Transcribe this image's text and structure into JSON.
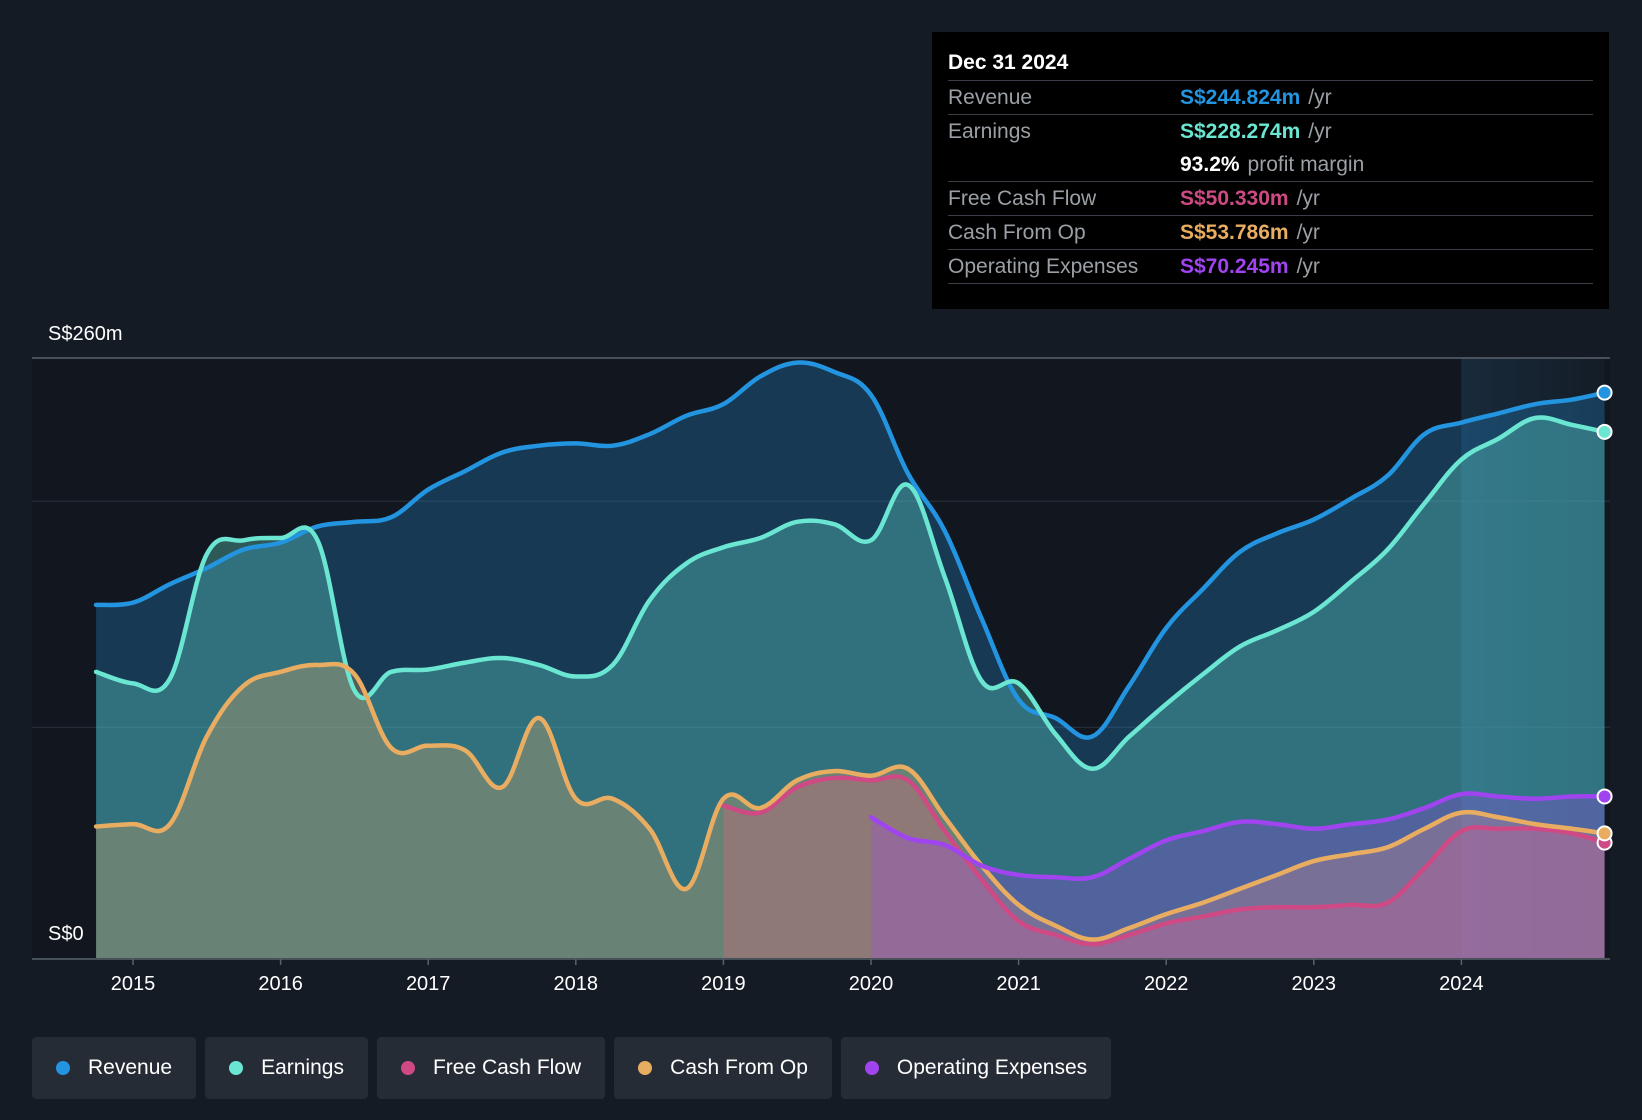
{
  "tooltip": {
    "date": "Dec 31 2024",
    "rows": [
      {
        "label": "Revenue",
        "value": "S$244.824m",
        "unit": "/yr",
        "color": "#2394df"
      },
      {
        "label": "Earnings",
        "value": "S$228.274m",
        "unit": "/yr",
        "color": "#6ae6d2"
      },
      {
        "margin_pct": "93.2%",
        "margin_text": "profit margin"
      },
      {
        "label": "Free Cash Flow",
        "value": "S$50.330m",
        "unit": "/yr",
        "color": "#cf4a85"
      },
      {
        "label": "Cash From Op",
        "value": "S$53.786m",
        "unit": "/yr",
        "color": "#e9ad62"
      },
      {
        "label": "Operating Expenses",
        "value": "S$70.245m",
        "unit": "/yr",
        "color": "#a044f0"
      }
    ]
  },
  "legend": [
    {
      "label": "Revenue",
      "color": "#2394df"
    },
    {
      "label": "Earnings",
      "color": "#6ae6d2"
    },
    {
      "label": "Free Cash Flow",
      "color": "#cf4a85"
    },
    {
      "label": "Cash From Op",
      "color": "#e9ad62"
    },
    {
      "label": "Operating Expenses",
      "color": "#a044f0"
    }
  ],
  "chart_data": {
    "type": "area",
    "title": "",
    "ylabel_top": "S$260m",
    "ylabel_bottom": "S$0",
    "ylim": [
      0,
      260
    ],
    "xlim": [
      2014.55,
      2024.97
    ],
    "highlight_start": 2024.0,
    "x_ticks": [
      2015,
      2016,
      2017,
      2018,
      2019,
      2020,
      2021,
      2022,
      2023,
      2024
    ],
    "series": [
      {
        "name": "Revenue",
        "color": "#2394df",
        "points": [
          [
            2014.75,
            153
          ],
          [
            2015.0,
            154
          ],
          [
            2015.25,
            162
          ],
          [
            2015.5,
            169
          ],
          [
            2015.75,
            177
          ],
          [
            2016.0,
            180
          ],
          [
            2016.25,
            187
          ],
          [
            2016.5,
            189
          ],
          [
            2016.75,
            191
          ],
          [
            2017.0,
            203
          ],
          [
            2017.25,
            211
          ],
          [
            2017.5,
            219
          ],
          [
            2017.75,
            222
          ],
          [
            2018.0,
            223
          ],
          [
            2018.25,
            222
          ],
          [
            2018.5,
            227
          ],
          [
            2018.75,
            235
          ],
          [
            2019.0,
            240
          ],
          [
            2019.25,
            252
          ],
          [
            2019.5,
            258
          ],
          [
            2019.75,
            254
          ],
          [
            2020.0,
            244
          ],
          [
            2020.25,
            210
          ],
          [
            2020.5,
            185
          ],
          [
            2020.75,
            147
          ],
          [
            2021.0,
            112
          ],
          [
            2021.25,
            104
          ],
          [
            2021.5,
            96
          ],
          [
            2021.75,
            118
          ],
          [
            2022.0,
            143
          ],
          [
            2022.25,
            160
          ],
          [
            2022.5,
            176
          ],
          [
            2022.75,
            184
          ],
          [
            2023.0,
            190
          ],
          [
            2023.25,
            199
          ],
          [
            2023.5,
            209
          ],
          [
            2023.75,
            227
          ],
          [
            2024.0,
            232
          ],
          [
            2024.25,
            236
          ],
          [
            2024.5,
            240
          ],
          [
            2024.75,
            242
          ],
          [
            2024.97,
            245
          ]
        ]
      },
      {
        "name": "Earnings",
        "color": "#6ae6d2",
        "points": [
          [
            2014.75,
            124
          ],
          [
            2015.0,
            119
          ],
          [
            2015.25,
            121
          ],
          [
            2015.5,
            175
          ],
          [
            2015.75,
            181
          ],
          [
            2016.0,
            182
          ],
          [
            2016.25,
            181
          ],
          [
            2016.5,
            116
          ],
          [
            2016.75,
            124
          ],
          [
            2017.0,
            125
          ],
          [
            2017.25,
            128
          ],
          [
            2017.5,
            130
          ],
          [
            2017.75,
            127
          ],
          [
            2018.0,
            122
          ],
          [
            2018.25,
            127
          ],
          [
            2018.5,
            155
          ],
          [
            2018.75,
            171
          ],
          [
            2019.0,
            178
          ],
          [
            2019.25,
            182
          ],
          [
            2019.5,
            189
          ],
          [
            2019.75,
            188
          ],
          [
            2020.0,
            181
          ],
          [
            2020.25,
            205
          ],
          [
            2020.5,
            165
          ],
          [
            2020.75,
            120
          ],
          [
            2021.0,
            119
          ],
          [
            2021.25,
            97
          ],
          [
            2021.5,
            82
          ],
          [
            2021.75,
            96
          ],
          [
            2022.0,
            110
          ],
          [
            2022.25,
            123
          ],
          [
            2022.5,
            135
          ],
          [
            2022.75,
            142
          ],
          [
            2023.0,
            150
          ],
          [
            2023.25,
            163
          ],
          [
            2023.5,
            177
          ],
          [
            2023.75,
            197
          ],
          [
            2024.0,
            216
          ],
          [
            2024.25,
            225
          ],
          [
            2024.5,
            234
          ],
          [
            2024.75,
            231
          ],
          [
            2024.97,
            228
          ]
        ]
      },
      {
        "name": "Free Cash Flow",
        "color": "#cf4a85",
        "points": [
          [
            2019.0,
            66
          ],
          [
            2019.25,
            63
          ],
          [
            2019.5,
            74
          ],
          [
            2019.75,
            78
          ],
          [
            2020.0,
            77
          ],
          [
            2020.25,
            77
          ],
          [
            2020.5,
            55
          ],
          [
            2020.75,
            34
          ],
          [
            2021.0,
            16
          ],
          [
            2021.25,
            10
          ],
          [
            2021.5,
            6
          ],
          [
            2021.75,
            10
          ],
          [
            2022.0,
            15
          ],
          [
            2022.25,
            18
          ],
          [
            2022.5,
            21
          ],
          [
            2022.75,
            22
          ],
          [
            2023.0,
            22
          ],
          [
            2023.25,
            23
          ],
          [
            2023.5,
            24
          ],
          [
            2023.75,
            39
          ],
          [
            2024.0,
            55
          ],
          [
            2024.25,
            56
          ],
          [
            2024.5,
            56
          ],
          [
            2024.75,
            54
          ],
          [
            2024.97,
            50
          ]
        ]
      },
      {
        "name": "Cash From Op",
        "color": "#e9ad62",
        "points": [
          [
            2014.75,
            57
          ],
          [
            2015.0,
            58
          ],
          [
            2015.25,
            58
          ],
          [
            2015.5,
            96
          ],
          [
            2015.75,
            118
          ],
          [
            2016.0,
            124
          ],
          [
            2016.25,
            127
          ],
          [
            2016.5,
            123
          ],
          [
            2016.75,
            91
          ],
          [
            2017.0,
            92
          ],
          [
            2017.25,
            90
          ],
          [
            2017.5,
            74
          ],
          [
            2017.75,
            104
          ],
          [
            2018.0,
            69
          ],
          [
            2018.25,
            69
          ],
          [
            2018.5,
            56
          ],
          [
            2018.75,
            30
          ],
          [
            2019.0,
            69
          ],
          [
            2019.25,
            65
          ],
          [
            2019.5,
            77
          ],
          [
            2019.75,
            81
          ],
          [
            2020.0,
            79
          ],
          [
            2020.25,
            82
          ],
          [
            2020.5,
            61
          ],
          [
            2020.75,
            40
          ],
          [
            2021.0,
            23
          ],
          [
            2021.25,
            14
          ],
          [
            2021.5,
            8
          ],
          [
            2021.75,
            13
          ],
          [
            2022.0,
            19
          ],
          [
            2022.25,
            24
          ],
          [
            2022.5,
            30
          ],
          [
            2022.75,
            36
          ],
          [
            2023.0,
            42
          ],
          [
            2023.25,
            45
          ],
          [
            2023.5,
            48
          ],
          [
            2023.75,
            56
          ],
          [
            2024.0,
            63
          ],
          [
            2024.25,
            61
          ],
          [
            2024.5,
            58
          ],
          [
            2024.75,
            56
          ],
          [
            2024.97,
            54
          ]
        ]
      },
      {
        "name": "Operating Expenses",
        "color": "#a044f0",
        "points": [
          [
            2020.0,
            61
          ],
          [
            2020.25,
            52
          ],
          [
            2020.5,
            49
          ],
          [
            2020.75,
            40
          ],
          [
            2021.0,
            36
          ],
          [
            2021.25,
            35
          ],
          [
            2021.5,
            35
          ],
          [
            2021.75,
            43
          ],
          [
            2022.0,
            51
          ],
          [
            2022.25,
            55
          ],
          [
            2022.5,
            59
          ],
          [
            2022.75,
            58
          ],
          [
            2023.0,
            56
          ],
          [
            2023.25,
            58
          ],
          [
            2023.5,
            60
          ],
          [
            2023.75,
            65
          ],
          [
            2024.0,
            71
          ],
          [
            2024.25,
            70
          ],
          [
            2024.5,
            69
          ],
          [
            2024.75,
            70
          ],
          [
            2024.97,
            70
          ]
        ]
      }
    ]
  }
}
